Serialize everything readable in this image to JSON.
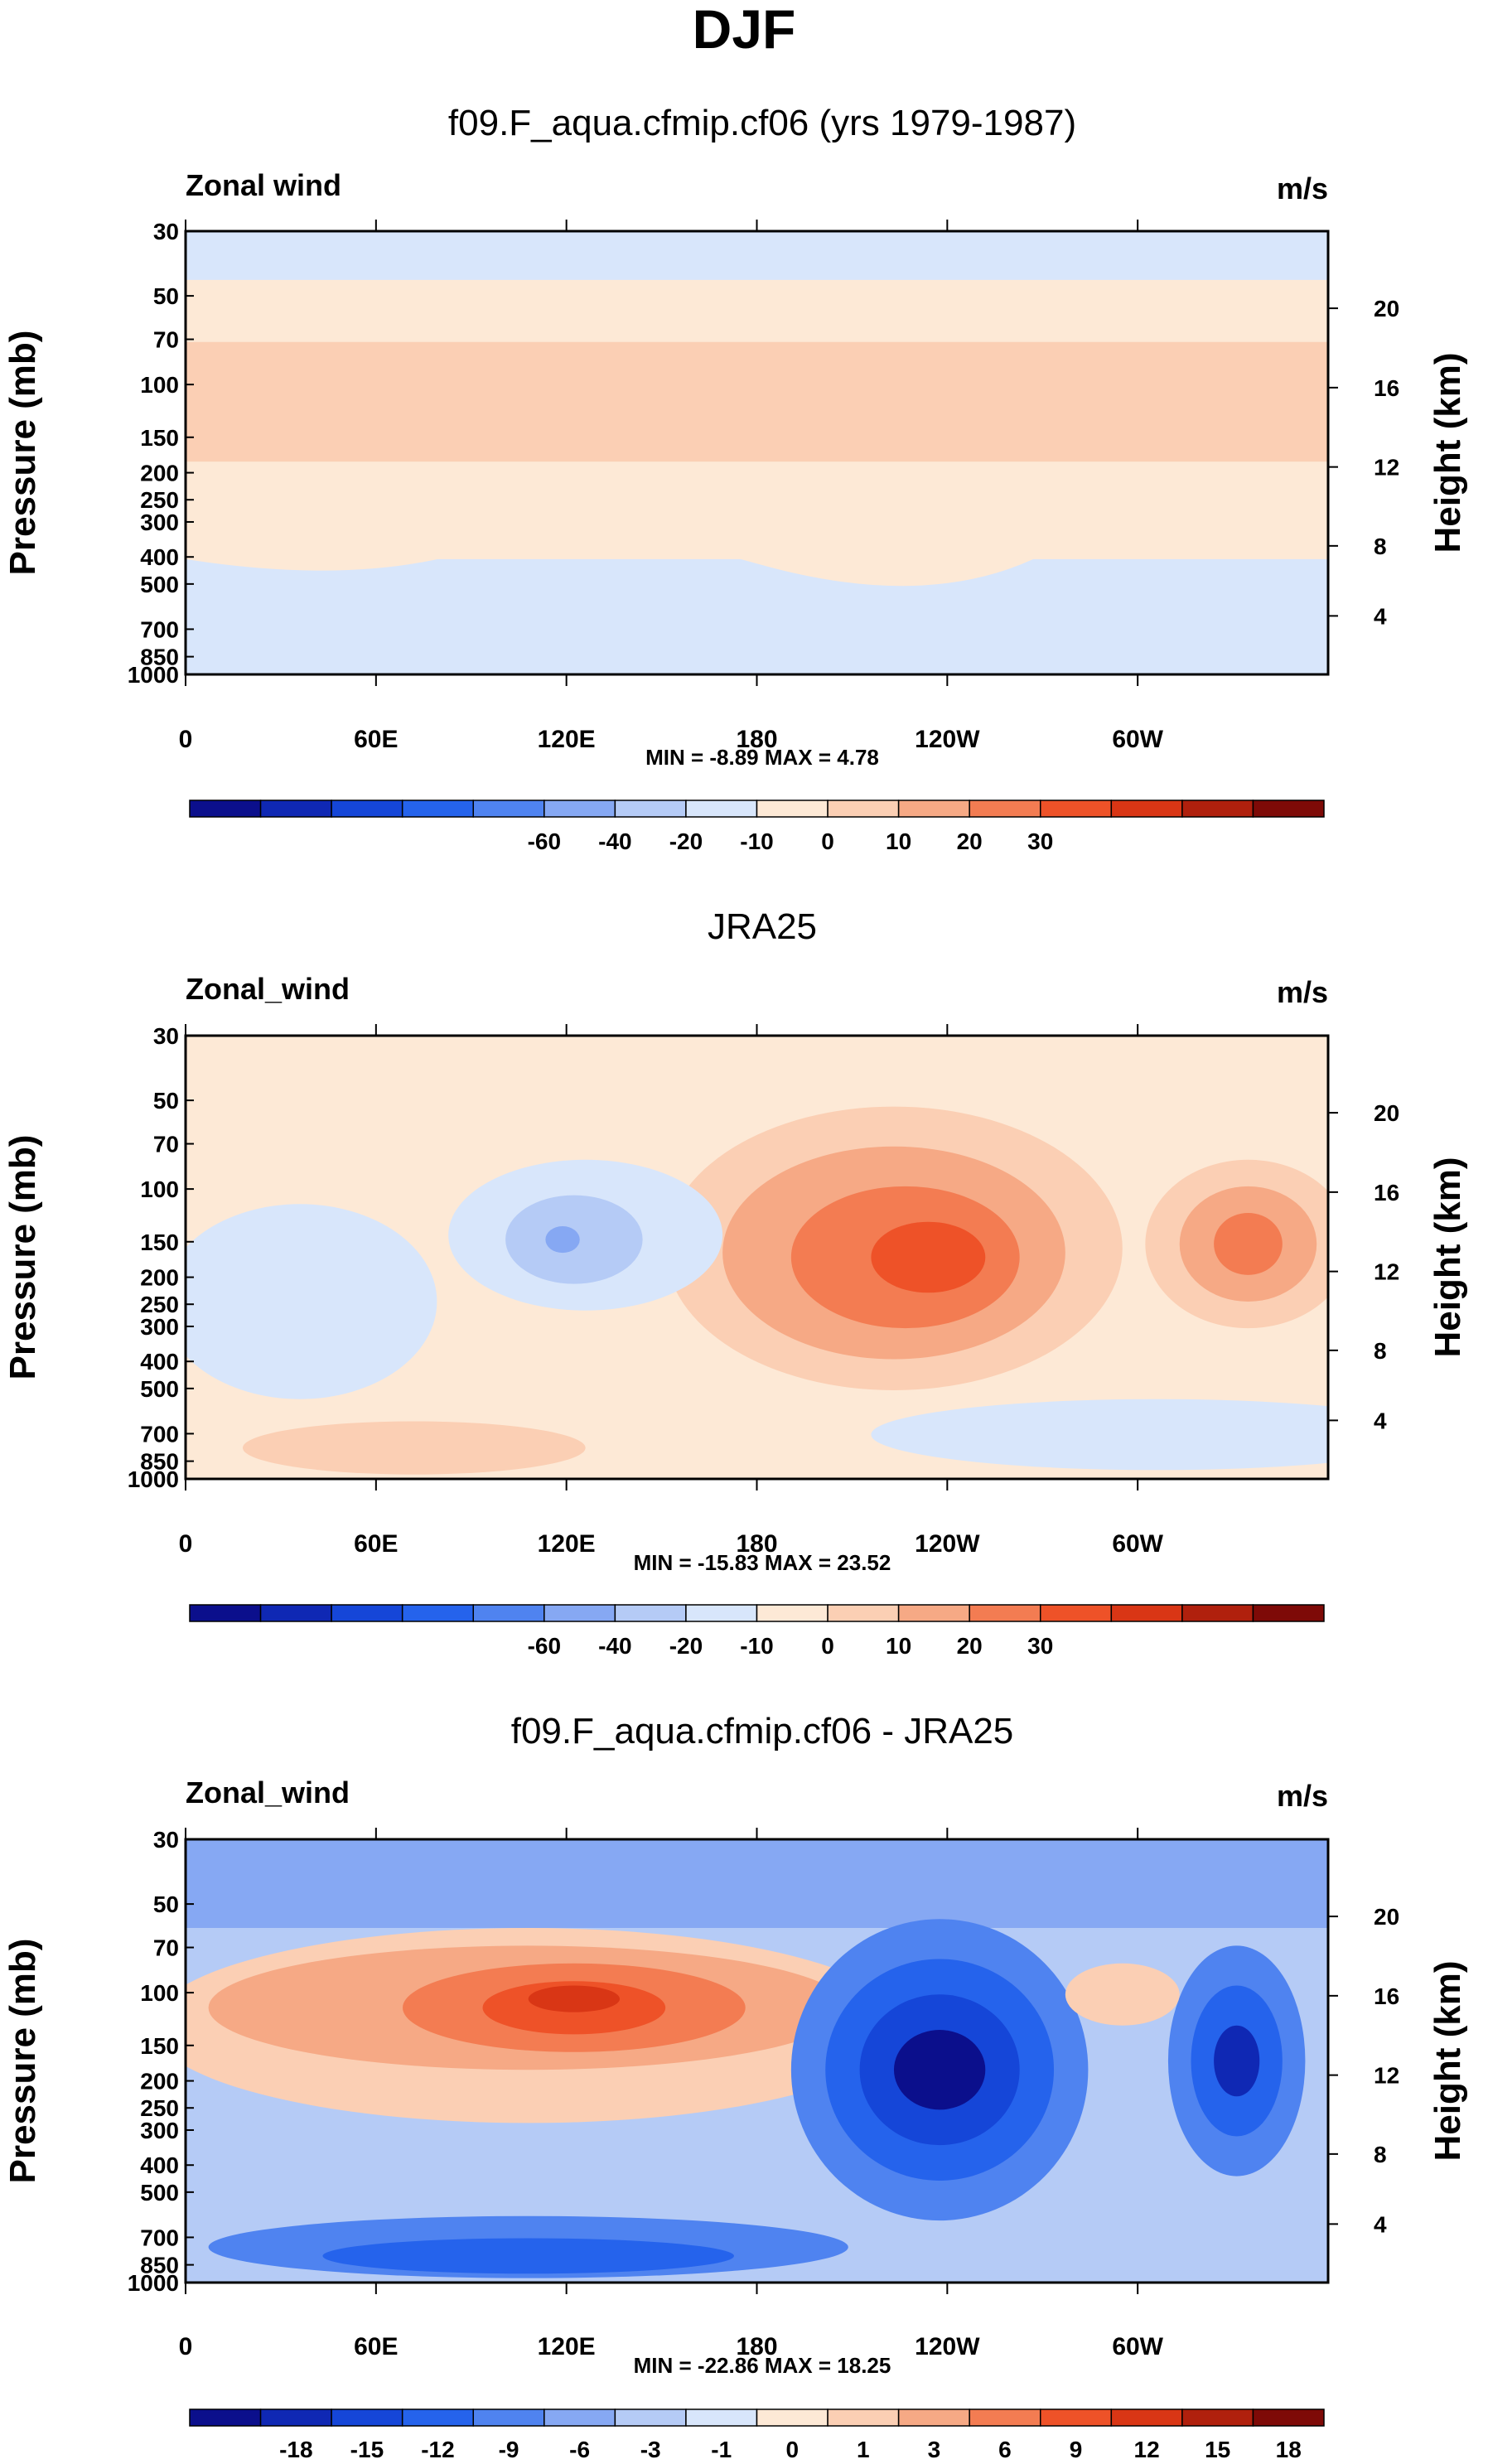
{
  "figure": {
    "title": "DJF"
  },
  "chart_data": [
    {
      "type": "contour",
      "panel_title": "f09.F_aqua.cfmip.cf06 (yrs 1979-1987)",
      "left_label": "Zonal wind",
      "right_label": "m/s",
      "ylabel": "Pressure (mb)",
      "y2label": "Height (km)",
      "x_ticks": [
        "0",
        "60E",
        "120E",
        "180",
        "120W",
        "60W"
      ],
      "y_ticks": [
        "30",
        "50",
        "70",
        "100",
        "150",
        "200",
        "250",
        "300",
        "400",
        "500",
        "700",
        "850",
        "1000"
      ],
      "y2_ticks": [
        "20",
        "16",
        "12",
        "8",
        "4"
      ],
      "stats": "MIN = -8.89  MAX =  4.78",
      "min": -8.89,
      "max": 4.78,
      "colorbar": {
        "levels": [
          "-60",
          "-40",
          "-20",
          "-10",
          "0",
          "10",
          "20",
          "30"
        ],
        "colors": [
          "#0b0f8c",
          "#0f28b4",
          "#1546d8",
          "#2563ec",
          "#4f83f0",
          "#86a8f3",
          "#b5cbf6",
          "#d8e6fb",
          "#fde9d6",
          "#fbcfb4",
          "#f6a985",
          "#f37c52",
          "#ee5228",
          "#d93615",
          "#b0200d",
          "#7e0a07"
        ]
      }
    },
    {
      "type": "contour",
      "panel_title": "JRA25",
      "left_label": "Zonal_wind",
      "right_label": "m/s",
      "ylabel": "Pressure (mb)",
      "y2label": "Height (km)",
      "x_ticks": [
        "0",
        "60E",
        "120E",
        "180",
        "120W",
        "60W"
      ],
      "y_ticks": [
        "30",
        "50",
        "70",
        "100",
        "150",
        "200",
        "250",
        "300",
        "400",
        "500",
        "700",
        "850",
        "1000"
      ],
      "y2_ticks": [
        "20",
        "16",
        "12",
        "8",
        "4"
      ],
      "stats": "MIN = -15.83  MAX = 23.52",
      "min": -15.83,
      "max": 23.52,
      "colorbar": {
        "levels": [
          "-60",
          "-40",
          "-20",
          "-10",
          "0",
          "10",
          "20",
          "30"
        ],
        "colors": [
          "#0b0f8c",
          "#0f28b4",
          "#1546d8",
          "#2563ec",
          "#4f83f0",
          "#86a8f3",
          "#b5cbf6",
          "#d8e6fb",
          "#fde9d6",
          "#fbcfb4",
          "#f6a985",
          "#f37c52",
          "#ee5228",
          "#d93615",
          "#b0200d",
          "#7e0a07"
        ]
      }
    },
    {
      "type": "contour",
      "panel_title": "f09.F_aqua.cfmip.cf06 - JRA25",
      "left_label": "Zonal_wind",
      "right_label": "m/s",
      "ylabel": "Pressure (mb)",
      "y2label": "Height (km)",
      "x_ticks": [
        "0",
        "60E",
        "120E",
        "180",
        "120W",
        "60W"
      ],
      "y_ticks": [
        "30",
        "50",
        "70",
        "100",
        "150",
        "200",
        "250",
        "300",
        "400",
        "500",
        "700",
        "850",
        "1000"
      ],
      "y2_ticks": [
        "20",
        "16",
        "12",
        "8",
        "4"
      ],
      "stats": "MIN = -22.86  MAX = 18.25",
      "min": -22.86,
      "max": 18.25,
      "colorbar": {
        "levels": [
          "-18",
          "-15",
          "-12",
          "-9",
          "-6",
          "-3",
          "-1",
          "0",
          "1",
          "3",
          "6",
          "9",
          "12",
          "15",
          "18"
        ],
        "colors": [
          "#0b0f8c",
          "#0f28b4",
          "#1546d8",
          "#2563ec",
          "#4f83f0",
          "#86a8f3",
          "#b5cbf6",
          "#d8e6fb",
          "#fde9d6",
          "#fbcfb4",
          "#f6a985",
          "#f37c52",
          "#ee5228",
          "#d93615",
          "#b0200d",
          "#7e0a07"
        ]
      }
    }
  ]
}
